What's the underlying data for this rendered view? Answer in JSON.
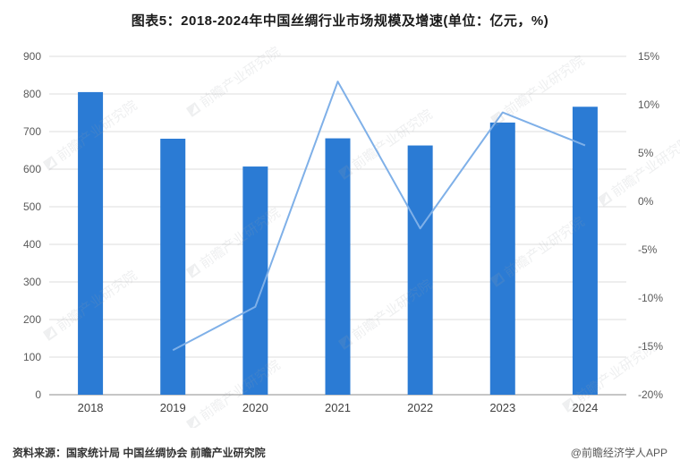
{
  "title": "图表5：2018-2024年中国丝绸行业市场规模及增速(单位：亿元，%)",
  "footer": {
    "source": "资料来源：国家统计局 中国丝绸协会 前瞻产业研究院",
    "attribution": "@前瞻经济学人APP"
  },
  "watermark": "前瞻产业研究院",
  "colors": {
    "bar": "#2B7BD4",
    "line": "#7FB0E8",
    "grid": "#dcdcdc",
    "axis": "#8c8c8c",
    "tick_label": "#595959",
    "x_label": "#404040"
  },
  "chart_data": {
    "type": "bar",
    "subtype": "bar+line combo",
    "title": "图表5：2018-2024年中国丝绸行业市场规模及增速(单位：亿元，%)",
    "categories": [
      "2018",
      "2019",
      "2020",
      "2021",
      "2022",
      "2023",
      "2024"
    ],
    "series": [
      {
        "name": "市场规模(亿元)",
        "type": "bar",
        "axis": "left",
        "values": [
          805,
          681,
          607,
          682,
          663,
          724,
          766
        ]
      },
      {
        "name": "增速(%)",
        "type": "line",
        "axis": "right",
        "values": [
          null,
          -15.4,
          -10.9,
          12.4,
          -2.8,
          9.2,
          5.8
        ]
      }
    ],
    "left_axis": {
      "min": 0,
      "max": 900,
      "step": 100,
      "ticks": [
        "0",
        "100",
        "200",
        "300",
        "400",
        "500",
        "600",
        "700",
        "800",
        "900"
      ]
    },
    "right_axis": {
      "min": -20,
      "max": 15,
      "step": 5,
      "ticks": [
        "-20%",
        "-15%",
        "-10%",
        "-5%",
        "0%",
        "5%",
        "10%",
        "15%"
      ]
    },
    "grid": true,
    "legend": "none"
  }
}
